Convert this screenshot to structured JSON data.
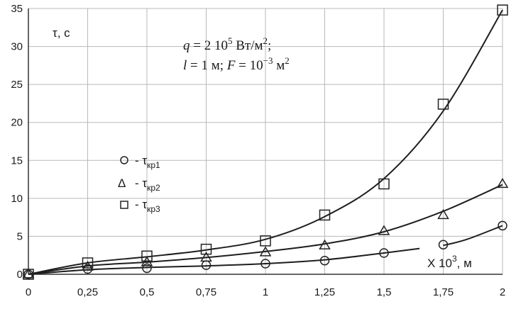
{
  "chart_data": {
    "type": "scatter",
    "y_label": "τ, с",
    "x_label_prefix": "X 10",
    "x_label_exp": "3",
    "x_label_suffix": ", м",
    "annotation": {
      "line1_q": "q",
      "line1_eq": " = 2 10",
      "line1_exp": "5",
      "line1_unit": " Вт/м",
      "line1_unit_exp": "2",
      "line1_end": ";",
      "line2_l": "l",
      "line2_eq1": " = 1 м; ",
      "line2_F": "F",
      "line2_eq2": " =  10",
      "line2_exp": "−3",
      "line2_unit": " м",
      "line2_unit_exp": "2"
    },
    "x_ticks": [
      0,
      0.25,
      0.5,
      0.75,
      1,
      1.25,
      1.5,
      1.75,
      2
    ],
    "x_tick_labels": [
      "0",
      "0,25",
      "0,5",
      "0,75",
      "1",
      "1,25",
      "1,5",
      "1,75",
      "2"
    ],
    "y_ticks": [
      0,
      5,
      10,
      15,
      20,
      25,
      30,
      35
    ],
    "y_tick_labels": [
      "0",
      "5",
      "10",
      "15",
      "20",
      "25",
      "30",
      "35"
    ],
    "xlim": [
      0,
      2
    ],
    "ylim": [
      0,
      35
    ],
    "grid": true,
    "series": [
      {
        "name": "τкр1",
        "label_main": "τ",
        "label_sub": "кр1",
        "marker": "circle",
        "x": [
          0,
          0.25,
          0.5,
          0.75,
          1,
          1.25,
          1.5,
          1.75,
          2
        ],
        "y": [
          0,
          0.7,
          0.8,
          1.2,
          1.4,
          1.8,
          2.8,
          3.9,
          6.4
        ],
        "curve1_x": [
          0,
          0.25,
          0.5,
          0.75,
          1,
          1.25,
          1.5,
          1.65
        ],
        "curve1_y": [
          0,
          0.6,
          0.9,
          1.1,
          1.4,
          1.9,
          2.8,
          3.4
        ],
        "curve2_x": [
          1.75,
          1.85,
          2
        ],
        "curve2_y": [
          3.8,
          4.6,
          6.4
        ]
      },
      {
        "name": "τкр2",
        "label_main": "τ",
        "label_sub": "кр2",
        "marker": "triangle",
        "x": [
          0,
          0.25,
          0.5,
          0.75,
          1,
          1.25,
          1.5,
          1.75,
          2
        ],
        "y": [
          0,
          1.0,
          1.6,
          2.2,
          2.9,
          3.8,
          5.7,
          7.8,
          11.9
        ],
        "curve_x": [
          0,
          0.25,
          0.5,
          0.75,
          1,
          1.25,
          1.5,
          1.75,
          2
        ],
        "curve_y": [
          0,
          1.1,
          1.6,
          2.2,
          3.0,
          4.0,
          5.6,
          8.3,
          11.8
        ]
      },
      {
        "name": "τкр3",
        "label_main": "τ",
        "label_sub": "кр3",
        "marker": "square",
        "x": [
          0,
          0.25,
          0.5,
          0.75,
          1,
          1.25,
          1.5,
          1.75,
          2
        ],
        "y": [
          0,
          1.5,
          2.4,
          3.3,
          4.4,
          7.8,
          11.9,
          22.4,
          34.8
        ],
        "curve_x": [
          0,
          0.25,
          0.5,
          0.75,
          1,
          1.25,
          1.5,
          1.75,
          2
        ],
        "curve_y": [
          0,
          1.5,
          2.3,
          3.2,
          4.6,
          7.6,
          12.6,
          21.5,
          34.8
        ]
      }
    ]
  }
}
